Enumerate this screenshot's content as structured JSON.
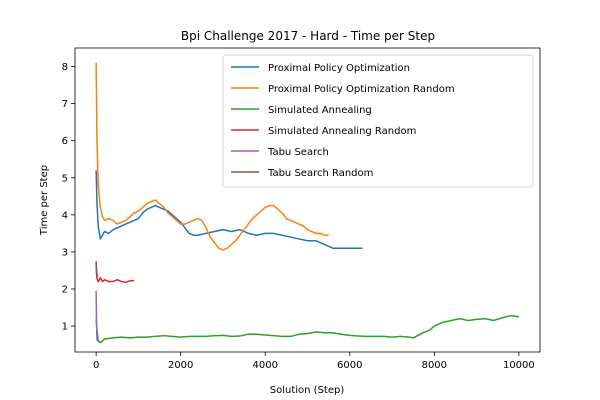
{
  "chart_data": {
    "type": "line",
    "title": "Bpi Challenge 2017 - Hard - Time per Step",
    "xlabel": "Solution (Step)",
    "ylabel": "Time per Step",
    "xlim": [
      -500,
      10500
    ],
    "ylim": [
      0.3,
      8.5
    ],
    "xticks": [
      0,
      2000,
      4000,
      6000,
      8000,
      10000
    ],
    "yticks": [
      1,
      2,
      3,
      4,
      5,
      6,
      7,
      8
    ],
    "grid": false,
    "legend_position": "top-right",
    "series": [
      {
        "name": "Proximal Policy Optimization",
        "color": "#1f77b4",
        "x": [
          0,
          20,
          50,
          100,
          150,
          200,
          300,
          400,
          500,
          600,
          700,
          800,
          900,
          1000,
          1100,
          1200,
          1300,
          1400,
          1500,
          1600,
          1700,
          1800,
          1900,
          2000,
          2100,
          2200,
          2300,
          2400,
          2600,
          2800,
          3000,
          3200,
          3400,
          3600,
          3800,
          4000,
          4200,
          4400,
          4600,
          4800,
          5000,
          5200,
          5400,
          5600,
          5800,
          6000,
          6200,
          6300
        ],
        "y": [
          5.2,
          4.3,
          3.7,
          3.35,
          3.45,
          3.55,
          3.5,
          3.6,
          3.65,
          3.7,
          3.75,
          3.8,
          3.85,
          3.9,
          4.05,
          4.15,
          4.2,
          4.25,
          4.2,
          4.15,
          4.1,
          4.0,
          3.9,
          3.8,
          3.65,
          3.5,
          3.45,
          3.45,
          3.5,
          3.55,
          3.6,
          3.55,
          3.6,
          3.5,
          3.45,
          3.5,
          3.5,
          3.45,
          3.4,
          3.35,
          3.3,
          3.3,
          3.2,
          3.1,
          3.1,
          3.1,
          3.1,
          3.1
        ]
      },
      {
        "name": "Proximal Policy Optimization Random",
        "color": "#ff7f0e",
        "x": [
          0,
          20,
          50,
          100,
          150,
          200,
          300,
          400,
          500,
          600,
          700,
          800,
          900,
          1000,
          1100,
          1200,
          1300,
          1400,
          1500,
          1600,
          1700,
          1800,
          1900,
          2000,
          2100,
          2200,
          2300,
          2400,
          2500,
          2600,
          2700,
          2800,
          2900,
          3000,
          3100,
          3200,
          3300,
          3400,
          3500,
          3600,
          3700,
          3800,
          3900,
          4000,
          4100,
          4200,
          4300,
          4400,
          4500,
          4600,
          4700,
          4800,
          4900,
          5000,
          5100,
          5200,
          5300,
          5400,
          5500
        ],
        "y": [
          8.1,
          6.0,
          4.8,
          4.2,
          3.95,
          3.85,
          3.9,
          3.85,
          3.75,
          3.8,
          3.85,
          3.95,
          4.05,
          4.1,
          4.2,
          4.3,
          4.35,
          4.4,
          4.3,
          4.2,
          4.05,
          3.95,
          3.85,
          3.75,
          3.75,
          3.8,
          3.85,
          3.9,
          3.85,
          3.65,
          3.4,
          3.25,
          3.1,
          3.05,
          3.1,
          3.2,
          3.3,
          3.45,
          3.6,
          3.75,
          3.9,
          4.0,
          4.1,
          4.2,
          4.25,
          4.25,
          4.15,
          4.05,
          3.9,
          3.85,
          3.8,
          3.75,
          3.7,
          3.6,
          3.55,
          3.5,
          3.5,
          3.45,
          3.45
        ]
      },
      {
        "name": "Simulated Annealing",
        "color": "#2ca02c",
        "x": [
          0,
          20,
          50,
          100,
          200,
          400,
          600,
          800,
          1000,
          1200,
          1400,
          1600,
          1800,
          2000,
          2200,
          2400,
          2600,
          2800,
          3000,
          3200,
          3400,
          3600,
          3800,
          4000,
          4200,
          4400,
          4600,
          4800,
          5000,
          5200,
          5400,
          5600,
          5800,
          6000,
          6200,
          6400,
          6600,
          6800,
          7000,
          7200,
          7400,
          7500,
          7700,
          7900,
          8000,
          8200,
          8400,
          8600,
          8800,
          9000,
          9200,
          9400,
          9600,
          9800,
          10000
        ],
        "y": [
          1.2,
          0.9,
          0.6,
          0.55,
          0.65,
          0.68,
          0.7,
          0.68,
          0.7,
          0.7,
          0.72,
          0.74,
          0.72,
          0.7,
          0.72,
          0.72,
          0.72,
          0.74,
          0.75,
          0.72,
          0.73,
          0.78,
          0.78,
          0.76,
          0.74,
          0.72,
          0.72,
          0.78,
          0.8,
          0.84,
          0.82,
          0.82,
          0.78,
          0.75,
          0.73,
          0.72,
          0.72,
          0.72,
          0.7,
          0.72,
          0.7,
          0.68,
          0.8,
          0.9,
          1.0,
          1.1,
          1.15,
          1.2,
          1.15,
          1.18,
          1.2,
          1.15,
          1.22,
          1.28,
          1.25
        ]
      },
      {
        "name": "Simulated Annealing Random",
        "color": "#d62728",
        "x": [
          0,
          10,
          20,
          30,
          50,
          80,
          100,
          150,
          200,
          300,
          400,
          500,
          600,
          700,
          800,
          900
        ],
        "y": [
          2.7,
          2.4,
          2.3,
          2.25,
          2.2,
          2.25,
          2.3,
          2.2,
          2.25,
          2.2,
          2.2,
          2.25,
          2.2,
          2.18,
          2.22,
          2.23
        ]
      },
      {
        "name": "Tabu Search",
        "color": "#9467bd",
        "x": [
          0,
          5,
          10,
          15,
          20,
          30,
          40
        ],
        "y": [
          1.95,
          1.5,
          1.1,
          0.8,
          0.65,
          0.6,
          0.6
        ]
      },
      {
        "name": "Tabu Search Random",
        "color": "#8c564b",
        "x": [
          0,
          5,
          10,
          15,
          20,
          30
        ],
        "y": [
          2.75,
          2.6,
          2.5,
          2.45,
          2.4,
          2.35
        ]
      }
    ]
  }
}
